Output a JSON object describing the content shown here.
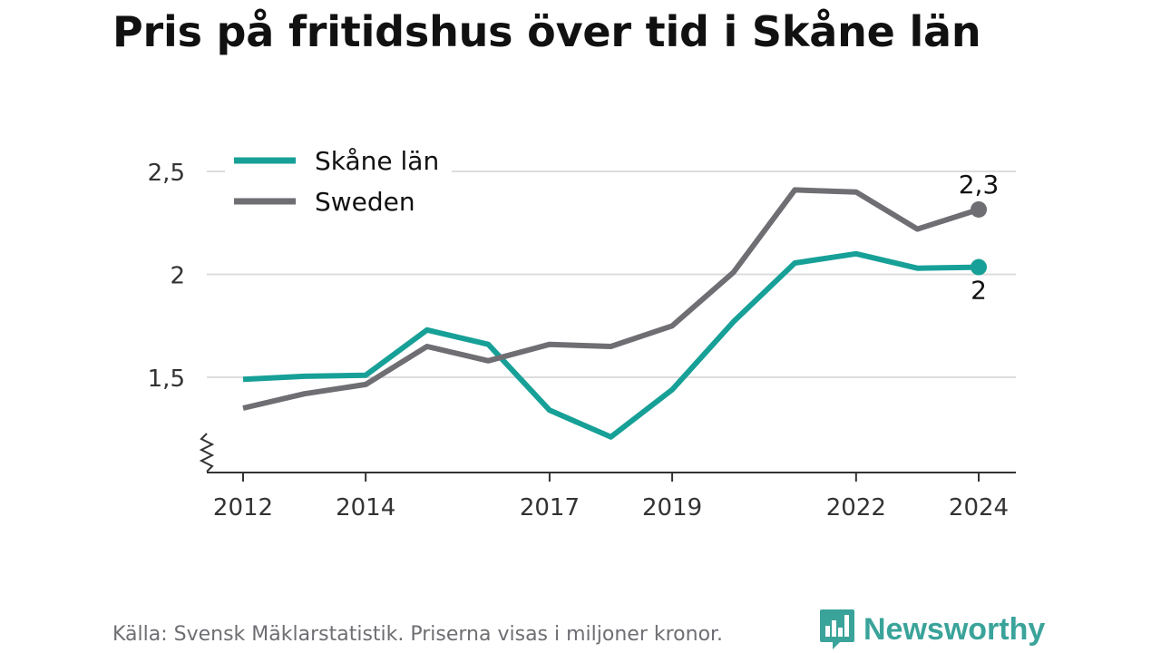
{
  "colors": {
    "skane": "#17a097",
    "sweden": "#6e6e73",
    "grid": "#dcdcdc",
    "text": "#333333",
    "logo": "#3aa39a"
  },
  "header": {
    "title": "Pris på fritidshus över tid i Skåne län"
  },
  "footer": {
    "source": "Källa: Svensk Mäklarstatistik. Priserna visas i miljoner kronor."
  },
  "logo": {
    "text": "Newsworthy",
    "icon": "bar-chart-speech-bubble-icon"
  },
  "chart_data": {
    "type": "line",
    "title": "Pris på fritidshus över tid i Skåne län",
    "x": [
      2012,
      2013,
      2014,
      2015,
      2016,
      2017,
      2018,
      2019,
      2020,
      2021,
      2022,
      2023,
      2024
    ],
    "x_tick_labels": [
      "2012",
      "2014",
      "2017",
      "2019",
      "2022",
      "2024"
    ],
    "y_tick_values": [
      1.5,
      2,
      2.5
    ],
    "y_tick_labels": [
      "1,5",
      "2",
      "2,5"
    ],
    "ylim": [
      1.03,
      2.6
    ],
    "xlim": [
      2011.6,
      2024.6
    ],
    "axis_break": true,
    "grid": true,
    "legend_position": "top-left",
    "series": [
      {
        "name": "Skåne län",
        "color_key": "skane",
        "values": [
          1.49,
          1.505,
          1.51,
          1.73,
          1.66,
          1.34,
          1.21,
          1.44,
          1.77,
          2.055,
          2.1,
          2.03,
          2.035
        ],
        "end_label": "2",
        "end_label_position": "below"
      },
      {
        "name": "Sweden",
        "color_key": "sweden",
        "values": [
          1.35,
          1.42,
          1.465,
          1.65,
          1.58,
          1.66,
          1.65,
          1.75,
          2.01,
          2.41,
          2.4,
          2.22,
          2.315
        ],
        "end_label": "2,3",
        "end_label_position": "above"
      }
    ]
  }
}
